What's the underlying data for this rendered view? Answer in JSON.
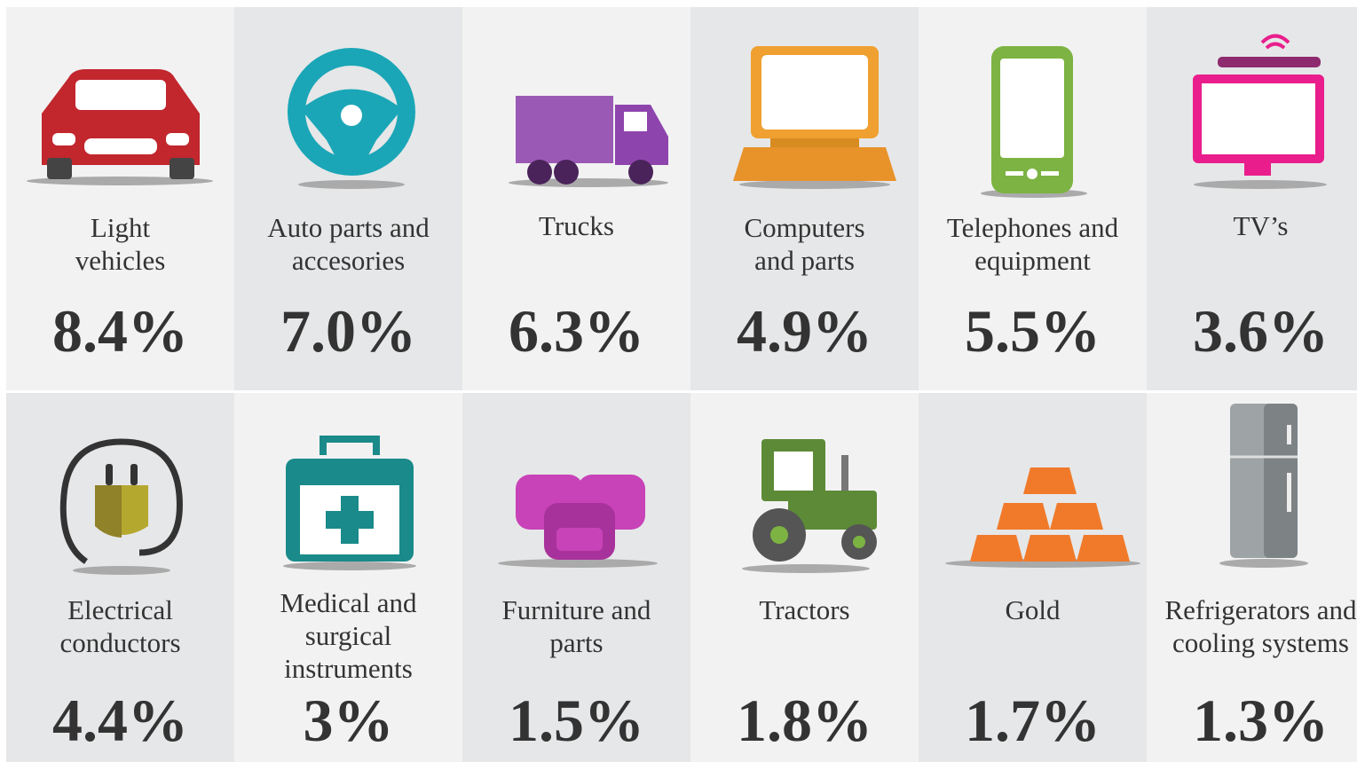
{
  "tiles": [
    {
      "label": [
        "Light",
        "vehicles"
      ],
      "value": "8.4%"
    },
    {
      "label": [
        "Auto parts and",
        "accesories"
      ],
      "value": "7.0%"
    },
    {
      "label": [
        "Trucks"
      ],
      "value": "6.3%"
    },
    {
      "label": [
        "Computers",
        "and parts"
      ],
      "value": "4.9%"
    },
    {
      "label": [
        "Telephones and",
        "equipment"
      ],
      "value": "5.5%"
    },
    {
      "label": [
        "TV’s"
      ],
      "value": "3.6%"
    },
    {
      "label": [
        "Electrical",
        "conductors"
      ],
      "value": "4.4%"
    },
    {
      "label": [
        "Medical and",
        "surgical",
        "instruments"
      ],
      "value": "3%"
    },
    {
      "label": [
        "Furniture and",
        "parts"
      ],
      "value": "1.5%"
    },
    {
      "label": [
        "Tractors"
      ],
      "value": "1.8%"
    },
    {
      "label": [
        "Gold"
      ],
      "value": "1.7%"
    },
    {
      "label": [
        "Refrigerators and",
        "cooling systems"
      ],
      "value": "1.3%"
    }
  ]
}
